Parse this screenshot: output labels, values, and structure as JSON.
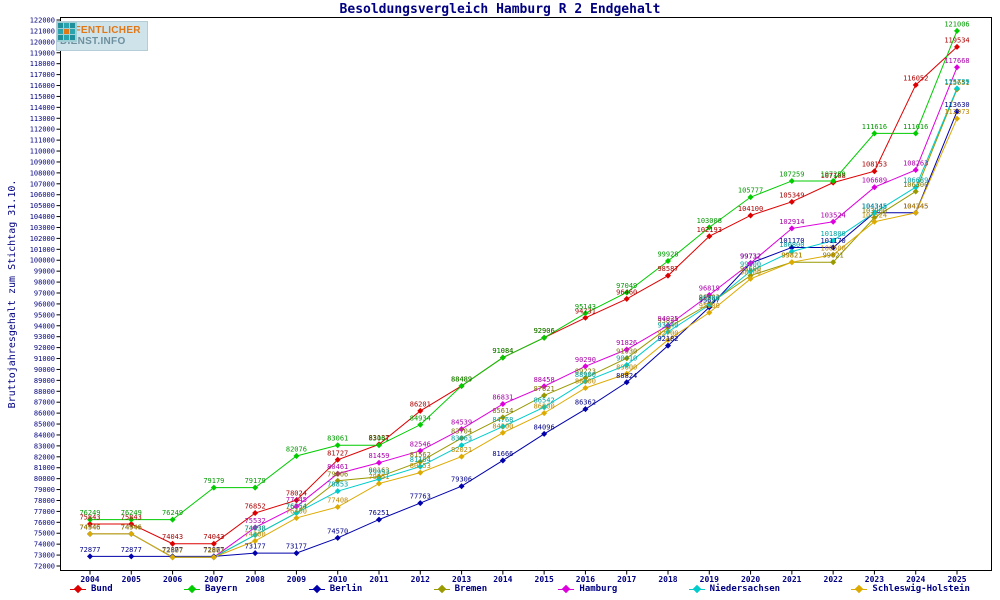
{
  "logo": {
    "line1": "ÖFFENTLICHER",
    "line2": "DIENST.INFO"
  },
  "chart_data": {
    "type": "line",
    "title": "Besoldungsvergleich Hamburg R 2 Endgehalt",
    "xlabel": "",
    "ylabel": "Bruttojahresgehalt zum Stichtag 31.10.",
    "ylim": [
      72000,
      122000
    ],
    "ytick_step": 1000,
    "grid": false,
    "legend_position": "bottom",
    "text_color": "#000080",
    "x": [
      "2004",
      "2005",
      "2006",
      "2007",
      "2008",
      "2009",
      "2010",
      "2011",
      "2012",
      "2013",
      "2014",
      "2015",
      "2016",
      "2017",
      "2018",
      "2019",
      "2020",
      "2021",
      "2022",
      "2023",
      "2024",
      "2025"
    ],
    "series": [
      {
        "name": "Bund",
        "color": "#dd0000",
        "label_color": "#aa0000",
        "values": [
          75843,
          75843,
          74043,
          74043,
          76852,
          78024,
          81727,
          83137,
          86201,
          88489,
          91084,
          92906,
          94731,
          96460,
          98587,
          102193,
          104100,
          105349,
          107108,
          108153,
          116052,
          119534
        ]
      },
      {
        "name": "Bayern",
        "color": "#00cc00",
        "label_color": "#009900",
        "values": [
          76249,
          76249,
          76249,
          79179,
          79179,
          82076,
          83061,
          83061,
          84934,
          88489,
          91084,
          92906,
          95143,
          97049,
          99928,
          103008,
          105777,
          107259,
          107259,
          111616,
          111616,
          121006
        ]
      },
      {
        "name": "Berlin",
        "color": "#0000aa",
        "label_color": "#000088",
        "values": [
          72877,
          72877,
          72877,
          72877,
          73177,
          73177,
          74570,
          76251,
          77763,
          79306,
          81666,
          84096,
          86362,
          88824,
          92182,
          95697,
          99732,
          101170,
          101170,
          104345,
          104345,
          113630
        ]
      },
      {
        "name": "Bremen",
        "color": "#999900",
        "label_color": "#807700",
        "values": [
          74946,
          74946,
          72807,
          72807,
          74838,
          76854,
          79806,
          80163,
          81562,
          83704,
          85614,
          87621,
          89223,
          91030,
          93823,
          96003,
          98600,
          99821,
          99821,
          103900,
          106300,
          115651
        ]
      },
      {
        "name": "Hamburg",
        "color": "#dd00dd",
        "label_color": "#aa00aa",
        "values": [
          74946,
          74946,
          72807,
          72807,
          75532,
          77445,
          80461,
          81459,
          82546,
          84539,
          86831,
          88458,
          90290,
          91826,
          94025,
          96819,
          99732,
          102914,
          103524,
          106689,
          108263,
          117668
        ]
      },
      {
        "name": "Niedersachsen",
        "color": "#00cccc",
        "label_color": "#00a0a0",
        "values": [
          74946,
          74946,
          72807,
          72807,
          74838,
          76854,
          78853,
          79953,
          81104,
          83063,
          84768,
          86542,
          88900,
          90410,
          93440,
          95900,
          99000,
          100800,
          101800,
          104345,
          106689,
          115739
        ]
      },
      {
        "name": "Schleswig-Holstein",
        "color": "#ddaa00",
        "label_color": "#bb8800",
        "values": [
          74946,
          74946,
          72807,
          72807,
          74300,
          76400,
          77408,
          79551,
          80553,
          82021,
          84200,
          86000,
          88300,
          89600,
          92700,
          95200,
          98300,
          99821,
          100500,
          103524,
          104345,
          112973
        ]
      }
    ]
  }
}
